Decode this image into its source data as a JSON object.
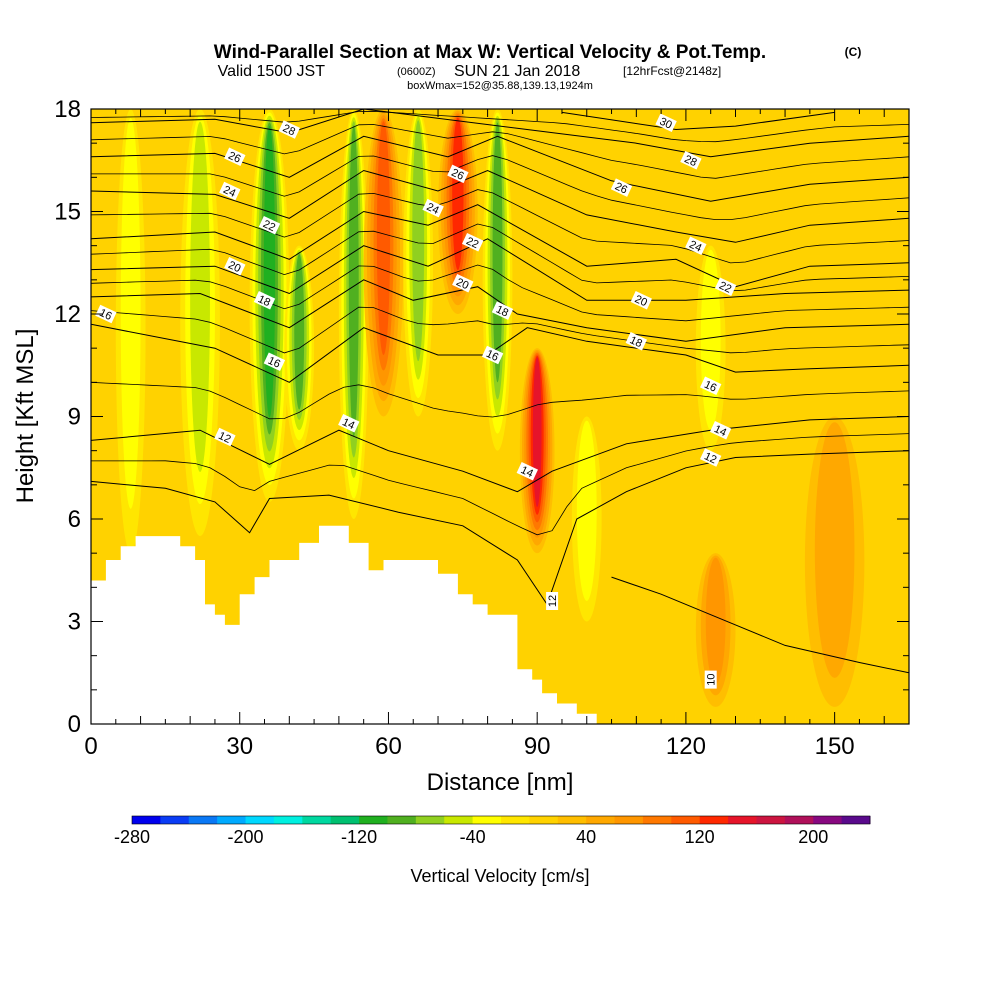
{
  "chart_data": {
    "type": "heatmap",
    "title": {
      "main": "Wind-Parallel Section at Max W: Vertical Velocity & Pot.Temp.",
      "main_unit": "(C)",
      "valid_prefix": "Valid 1500 JST",
      "valid_utc": "(0600Z)",
      "valid_date": "SUN 21 Jan 2018",
      "forecast": "[12hrFcst@2148z]",
      "box": "boxWmax=152@35.88,139.13,1924m"
    },
    "xlabel": "Distance [nm]",
    "ylabel": "Height [Kft MSL]",
    "xlim": [
      0,
      165
    ],
    "ylim": [
      0,
      18
    ],
    "x_ticks": [
      0,
      30,
      60,
      90,
      120,
      150
    ],
    "y_ticks": [
      0,
      3,
      6,
      9,
      12,
      15,
      18
    ],
    "colorbar": {
      "label": "Vertical Velocity [cm/s]",
      "tick_labels": [
        -280,
        -200,
        -120,
        -40,
        40,
        120,
        200
      ],
      "levels": [
        -280,
        -260,
        -240,
        -220,
        -200,
        -180,
        -160,
        -140,
        -120,
        -100,
        -80,
        -60,
        -40,
        -20,
        0,
        20,
        40,
        60,
        80,
        100,
        120,
        140,
        160,
        180,
        200,
        220
      ],
      "colors": [
        "#0000ee",
        "#0a3cf5",
        "#0a78f5",
        "#00aaff",
        "#00d8ff",
        "#00f0e0",
        "#00d8a0",
        "#00c070",
        "#20b020",
        "#50b020",
        "#90d020",
        "#c8e800",
        "#ffff00",
        "#ffe600",
        "#ffd200",
        "#ffbe00",
        "#ffa800",
        "#ff9600",
        "#ff7800",
        "#ff5a00",
        "#ff2800",
        "#e6142a",
        "#cc1440",
        "#b0105a",
        "#880880",
        "#5a0a8c"
      ]
    },
    "vertical_velocity_features": [
      {
        "x": 8,
        "value": -40,
        "half_width": 3,
        "z_from": 5,
        "z_to": 18
      },
      {
        "x": 22,
        "value": -60,
        "half_width": 4,
        "z_from": 5.5,
        "z_to": 18
      },
      {
        "x": 36,
        "value": -120,
        "half_width": 4,
        "z_from": 6.5,
        "z_to": 18
      },
      {
        "x": 42,
        "value": -100,
        "half_width": 3,
        "z_from": 8,
        "z_to": 14
      },
      {
        "x": 53,
        "value": -90,
        "half_width": 3,
        "z_from": 6,
        "z_to": 18
      },
      {
        "x": 59,
        "value": 100,
        "half_width": 4,
        "z_from": 9,
        "z_to": 18
      },
      {
        "x": 66,
        "value": -70,
        "half_width": 3,
        "z_from": 9,
        "z_to": 18
      },
      {
        "x": 74,
        "value": 120,
        "half_width": 4,
        "z_from": 12,
        "z_to": 18
      },
      {
        "x": 82,
        "value": -90,
        "half_width": 3,
        "z_from": 8,
        "z_to": 18
      },
      {
        "x": 90,
        "value": 130,
        "half_width": 3.5,
        "z_from": 5,
        "z_to": 11
      },
      {
        "x": 100,
        "value": -40,
        "half_width": 3,
        "z_from": 3,
        "z_to": 9
      },
      {
        "x": 125,
        "value": -40,
        "half_width": 3,
        "z_from": 8,
        "z_to": 14
      },
      {
        "x": 126,
        "value": 50,
        "half_width": 4,
        "z_from": 0.5,
        "z_to": 5
      },
      {
        "x": 150,
        "value": 40,
        "half_width": 6,
        "z_from": 0.5,
        "z_to": 9
      }
    ],
    "theta_isentropes_C": [
      {
        "value": 10,
        "heights": [
          [
            105,
            4.3
          ],
          [
            115,
            3.8
          ],
          [
            125,
            3.2
          ],
          [
            140,
            2.3
          ],
          [
            155,
            1.8
          ],
          [
            165,
            1.5
          ]
        ]
      },
      {
        "value": 12,
        "heights": [
          [
            0,
            7.1
          ],
          [
            15,
            6.9
          ],
          [
            25,
            6.5
          ],
          [
            32,
            5.6
          ],
          [
            36,
            6.6
          ],
          [
            48,
            6.7
          ],
          [
            62,
            6.2
          ],
          [
            75,
            5.8
          ],
          [
            86,
            4.8
          ],
          [
            92,
            3.5
          ],
          [
            98,
            6.0
          ],
          [
            108,
            6.8
          ],
          [
            120,
            7.5
          ],
          [
            130,
            7.8
          ],
          [
            145,
            7.9
          ],
          [
            165,
            8.0
          ]
        ]
      },
      {
        "value": 14,
        "heights": [
          [
            0,
            8.3
          ],
          [
            22,
            8.6
          ],
          [
            36,
            7.6
          ],
          [
            50,
            8.6
          ],
          [
            60,
            8.0
          ],
          [
            75,
            7.4
          ],
          [
            86,
            6.8
          ],
          [
            93,
            7.4
          ],
          [
            108,
            8.2
          ],
          [
            125,
            8.6
          ],
          [
            145,
            8.9
          ],
          [
            165,
            9.0
          ]
        ]
      },
      {
        "value": 16,
        "heights": [
          [
            0,
            11.7
          ],
          [
            25,
            11.0
          ],
          [
            40,
            10.0
          ],
          [
            55,
            11.6
          ],
          [
            70,
            10.8
          ],
          [
            80,
            10.8
          ],
          [
            88,
            11.6
          ],
          [
            100,
            11.2
          ],
          [
            120,
            10.8
          ],
          [
            130,
            10.3
          ],
          [
            145,
            10.4
          ],
          [
            165,
            10.5
          ]
        ]
      },
      {
        "value": 18,
        "heights": [
          [
            0,
            12.5
          ],
          [
            22,
            12.6
          ],
          [
            40,
            11.6
          ],
          [
            55,
            13.0
          ],
          [
            65,
            12.4
          ],
          [
            78,
            12.8
          ],
          [
            86,
            12.0
          ],
          [
            100,
            11.6
          ],
          [
            120,
            11.2
          ],
          [
            140,
            11.6
          ],
          [
            165,
            11.7
          ]
        ]
      },
      {
        "value": 20,
        "heights": [
          [
            0,
            13.3
          ],
          [
            25,
            13.4
          ],
          [
            40,
            12.6
          ],
          [
            55,
            14.0
          ],
          [
            68,
            13.4
          ],
          [
            80,
            14.2
          ],
          [
            100,
            12.4
          ],
          [
            120,
            12.4
          ],
          [
            140,
            12.6
          ],
          [
            165,
            12.7
          ]
        ]
      },
      {
        "value": 22,
        "heights": [
          [
            0,
            14.2
          ],
          [
            25,
            14.4
          ],
          [
            40,
            13.6
          ],
          [
            55,
            15.0
          ],
          [
            68,
            14.6
          ],
          [
            78,
            15.2
          ],
          [
            100,
            13.4
          ],
          [
            118,
            13.6
          ],
          [
            130,
            12.8
          ],
          [
            145,
            13.4
          ],
          [
            165,
            13.5
          ]
        ]
      },
      {
        "value": 24,
        "heights": [
          [
            0,
            15.6
          ],
          [
            25,
            15.5
          ],
          [
            40,
            14.8
          ],
          [
            55,
            16.2
          ],
          [
            70,
            15.6
          ],
          [
            80,
            16.2
          ],
          [
            100,
            14.9
          ],
          [
            118,
            14.4
          ],
          [
            130,
            14.1
          ],
          [
            145,
            14.6
          ],
          [
            165,
            14.8
          ]
        ]
      },
      {
        "value": 26,
        "heights": [
          [
            0,
            16.6
          ],
          [
            25,
            16.7
          ],
          [
            40,
            16.0
          ],
          [
            55,
            17.2
          ],
          [
            72,
            16.6
          ],
          [
            82,
            17.2
          ],
          [
            105,
            15.9
          ],
          [
            125,
            15.3
          ],
          [
            145,
            15.8
          ],
          [
            165,
            16.0
          ]
        ]
      },
      {
        "value": 28,
        "heights": [
          [
            0,
            17.6
          ],
          [
            25,
            17.7
          ],
          [
            40,
            17.3
          ],
          [
            55,
            18.0
          ],
          [
            110,
            17.0
          ],
          [
            125,
            16.6
          ],
          [
            145,
            17.0
          ],
          [
            165,
            17.2
          ]
        ]
      },
      {
        "value": 30,
        "heights": [
          [
            95,
            17.9
          ],
          [
            118,
            17.4
          ],
          [
            130,
            17.5
          ],
          [
            150,
            17.9
          ]
        ]
      }
    ],
    "contour_labels": [
      {
        "text": "28",
        "x": 40,
        "z": 17.4
      },
      {
        "text": "26",
        "x": 29,
        "z": 16.6
      },
      {
        "text": "24",
        "x": 28,
        "z": 15.6
      },
      {
        "text": "22",
        "x": 36,
        "z": 14.6
      },
      {
        "text": "20",
        "x": 29,
        "z": 13.4
      },
      {
        "text": "18",
        "x": 35,
        "z": 12.4
      },
      {
        "text": "16",
        "x": 37,
        "z": 10.6
      },
      {
        "text": "16",
        "x": 3,
        "z": 12.0
      },
      {
        "text": "12",
        "x": 27,
        "z": 8.4
      },
      {
        "text": "14",
        "x": 52,
        "z": 8.8
      },
      {
        "text": "26",
        "x": 74,
        "z": 16.1
      },
      {
        "text": "24",
        "x": 69,
        "z": 15.1
      },
      {
        "text": "22",
        "x": 77,
        "z": 14.1
      },
      {
        "text": "20",
        "x": 75,
        "z": 12.9
      },
      {
        "text": "18",
        "x": 83,
        "z": 12.1
      },
      {
        "text": "16",
        "x": 81,
        "z": 10.8
      },
      {
        "text": "14",
        "x": 88,
        "z": 7.4
      },
      {
        "text": "12",
        "x": 93,
        "z": 3.6
      },
      {
        "text": "30",
        "x": 116,
        "z": 17.6
      },
      {
        "text": "28",
        "x": 121,
        "z": 16.5
      },
      {
        "text": "26",
        "x": 107,
        "z": 15.7
      },
      {
        "text": "24",
        "x": 122,
        "z": 14.0
      },
      {
        "text": "22",
        "x": 128,
        "z": 12.8
      },
      {
        "text": "20",
        "x": 111,
        "z": 12.4
      },
      {
        "text": "18",
        "x": 110,
        "z": 11.2
      },
      {
        "text": "16",
        "x": 125,
        "z": 9.9
      },
      {
        "text": "14",
        "x": 127,
        "z": 8.6
      },
      {
        "text": "12",
        "x": 125,
        "z": 7.8
      },
      {
        "text": "10",
        "x": 125,
        "z": 1.3
      }
    ],
    "terrain": [
      [
        0,
        4.2
      ],
      [
        3,
        4.2
      ],
      [
        3,
        4.8
      ],
      [
        6,
        4.8
      ],
      [
        6,
        5.2
      ],
      [
        9,
        5.2
      ],
      [
        9,
        5.5
      ],
      [
        18,
        5.5
      ],
      [
        18,
        5.2
      ],
      [
        21,
        5.2
      ],
      [
        21,
        4.8
      ],
      [
        23,
        4.8
      ],
      [
        23,
        3.5
      ],
      [
        25,
        3.5
      ],
      [
        25,
        3.2
      ],
      [
        27,
        3.2
      ],
      [
        27,
        2.9
      ],
      [
        30,
        2.9
      ],
      [
        30,
        3.8
      ],
      [
        33,
        3.8
      ],
      [
        33,
        4.3
      ],
      [
        36,
        4.3
      ],
      [
        36,
        4.8
      ],
      [
        42,
        4.8
      ],
      [
        42,
        5.3
      ],
      [
        46,
        5.3
      ],
      [
        46,
        5.8
      ],
      [
        52,
        5.8
      ],
      [
        52,
        5.3
      ],
      [
        56,
        5.3
      ],
      [
        56,
        4.5
      ],
      [
        59,
        4.5
      ],
      [
        59,
        4.8
      ],
      [
        70,
        4.8
      ],
      [
        70,
        4.4
      ],
      [
        74,
        4.4
      ],
      [
        74,
        3.8
      ],
      [
        77,
        3.8
      ],
      [
        77,
        3.5
      ],
      [
        80,
        3.5
      ],
      [
        80,
        3.2
      ],
      [
        86,
        3.2
      ],
      [
        86,
        1.6
      ],
      [
        89,
        1.6
      ],
      [
        89,
        1.3
      ],
      [
        91,
        1.3
      ],
      [
        91,
        0.9
      ],
      [
        94,
        0.9
      ],
      [
        94,
        0.6
      ],
      [
        98,
        0.6
      ],
      [
        98,
        0.3
      ],
      [
        102,
        0.3
      ],
      [
        102,
        0.0
      ],
      [
        0,
        0.0
      ]
    ]
  }
}
